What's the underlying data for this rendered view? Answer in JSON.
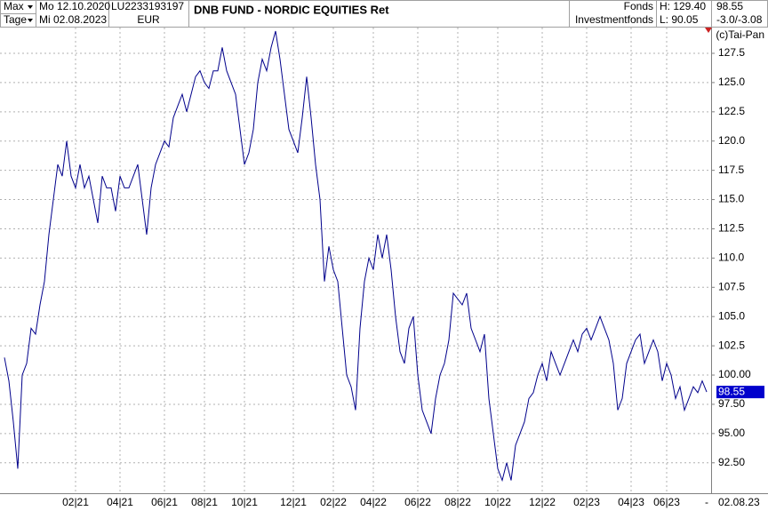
{
  "header": {
    "period": "Max",
    "unit": "Tage",
    "start": "Mo 12.10.2020",
    "end": "Mi 02.08.2023",
    "isin": "LU2233193197",
    "currency": "EUR",
    "kind": "Fonds",
    "group": "Investmentfonds",
    "high": "H: 129.40",
    "low": "L: 90.05",
    "last": "98.55",
    "change": "-3.0/-3.08",
    "copyright": "(c)Tai-Pan",
    "end_marker": "-",
    "end_label": "02.08.23"
  },
  "chart_data": {
    "type": "line",
    "title": "DNB FUND - NORDIC EQUITIES Ret",
    "categories": [
      null,
      null,
      null,
      null,
      null,
      null,
      null,
      null,
      null,
      null,
      null,
      null,
      null,
      null,
      null,
      null,
      "02|21",
      null,
      null,
      null,
      null,
      null,
      null,
      null,
      null,
      null,
      "04|21",
      null,
      null,
      null,
      null,
      null,
      null,
      null,
      null,
      null,
      "06|21",
      null,
      null,
      null,
      null,
      null,
      null,
      null,
      null,
      "08|21",
      null,
      null,
      null,
      null,
      null,
      null,
      null,
      null,
      "10|21",
      null,
      null,
      null,
      null,
      null,
      null,
      null,
      null,
      null,
      null,
      "12|21",
      null,
      null,
      null,
      null,
      null,
      null,
      null,
      null,
      "02|22",
      null,
      null,
      null,
      null,
      null,
      null,
      null,
      null,
      "04|22",
      null,
      null,
      null,
      null,
      null,
      null,
      null,
      null,
      null,
      "06|22",
      null,
      null,
      null,
      null,
      null,
      null,
      null,
      null,
      "08|22",
      null,
      null,
      null,
      null,
      null,
      null,
      null,
      null,
      "10|22",
      null,
      null,
      null,
      null,
      null,
      null,
      null,
      null,
      null,
      "12|22",
      null,
      null,
      null,
      null,
      null,
      null,
      null,
      null,
      null,
      "02|23",
      null,
      null,
      null,
      null,
      null,
      null,
      null,
      null,
      null,
      "04|23",
      null,
      null,
      null,
      null,
      null,
      null,
      null,
      "06|23",
      null,
      null,
      null,
      null,
      null,
      null,
      null,
      null,
      null
    ],
    "series": [
      {
        "name": "DNB FUND - NORDIC EQUITIES Ret",
        "color": "#00008b",
        "values": [
          101.5,
          99.5,
          96,
          92,
          100,
          101,
          104,
          103.5,
          106,
          108,
          112,
          115,
          118,
          117,
          120,
          117,
          116,
          118,
          116,
          117,
          115,
          113,
          117,
          116,
          116,
          114,
          117,
          116,
          116,
          117,
          118,
          115,
          112,
          116,
          118,
          119,
          120,
          119.5,
          122,
          123,
          124,
          122.5,
          124,
          125.5,
          126,
          125,
          124.5,
          126,
          126,
          128,
          126,
          125,
          124,
          121,
          118,
          119,
          121,
          125,
          127,
          126,
          128,
          129.4,
          127,
          124,
          121,
          120,
          119,
          122,
          125.5,
          122,
          118,
          115,
          108,
          111,
          109,
          108,
          104,
          100,
          99,
          97,
          104,
          108,
          110,
          109,
          112,
          110,
          112,
          109,
          105,
          102,
          101,
          104,
          105,
          100,
          97,
          96,
          95,
          98,
          100,
          101,
          103,
          107,
          106.5,
          106,
          107,
          104,
          103,
          102,
          103.5,
          98,
          95,
          92,
          91,
          92.5,
          91,
          94,
          95,
          96,
          98,
          98.5,
          100,
          101,
          99.5,
          102,
          101,
          100,
          101,
          102,
          103,
          102,
          103.5,
          104,
          103,
          104,
          105,
          104,
          103,
          101,
          97,
          98,
          101,
          102,
          103,
          103.5,
          101,
          102,
          103,
          102,
          99.5,
          101,
          100,
          98,
          99,
          97,
          98,
          99,
          98.5,
          99.5,
          98.55
        ]
      }
    ],
    "ylim": [
      89.9,
      129.55
    ],
    "yticks": [
      {
        "value": 92.5,
        "label": "92.50"
      },
      {
        "value": 95,
        "label": "95.00"
      },
      {
        "value": 97.5,
        "label": "97.50"
      },
      {
        "value": 100,
        "label": "100.00"
      },
      102.5,
      {
        "value": 105,
        "label": "105.0"
      },
      107.5,
      {
        "value": 110,
        "label": "110.0"
      },
      112.5,
      {
        "value": 115,
        "label": "115.0"
      },
      117.5,
      {
        "value": 120,
        "label": "120.0"
      },
      122.5,
      {
        "value": 125,
        "label": "125.0"
      },
      127.5
    ],
    "grid": true
  }
}
